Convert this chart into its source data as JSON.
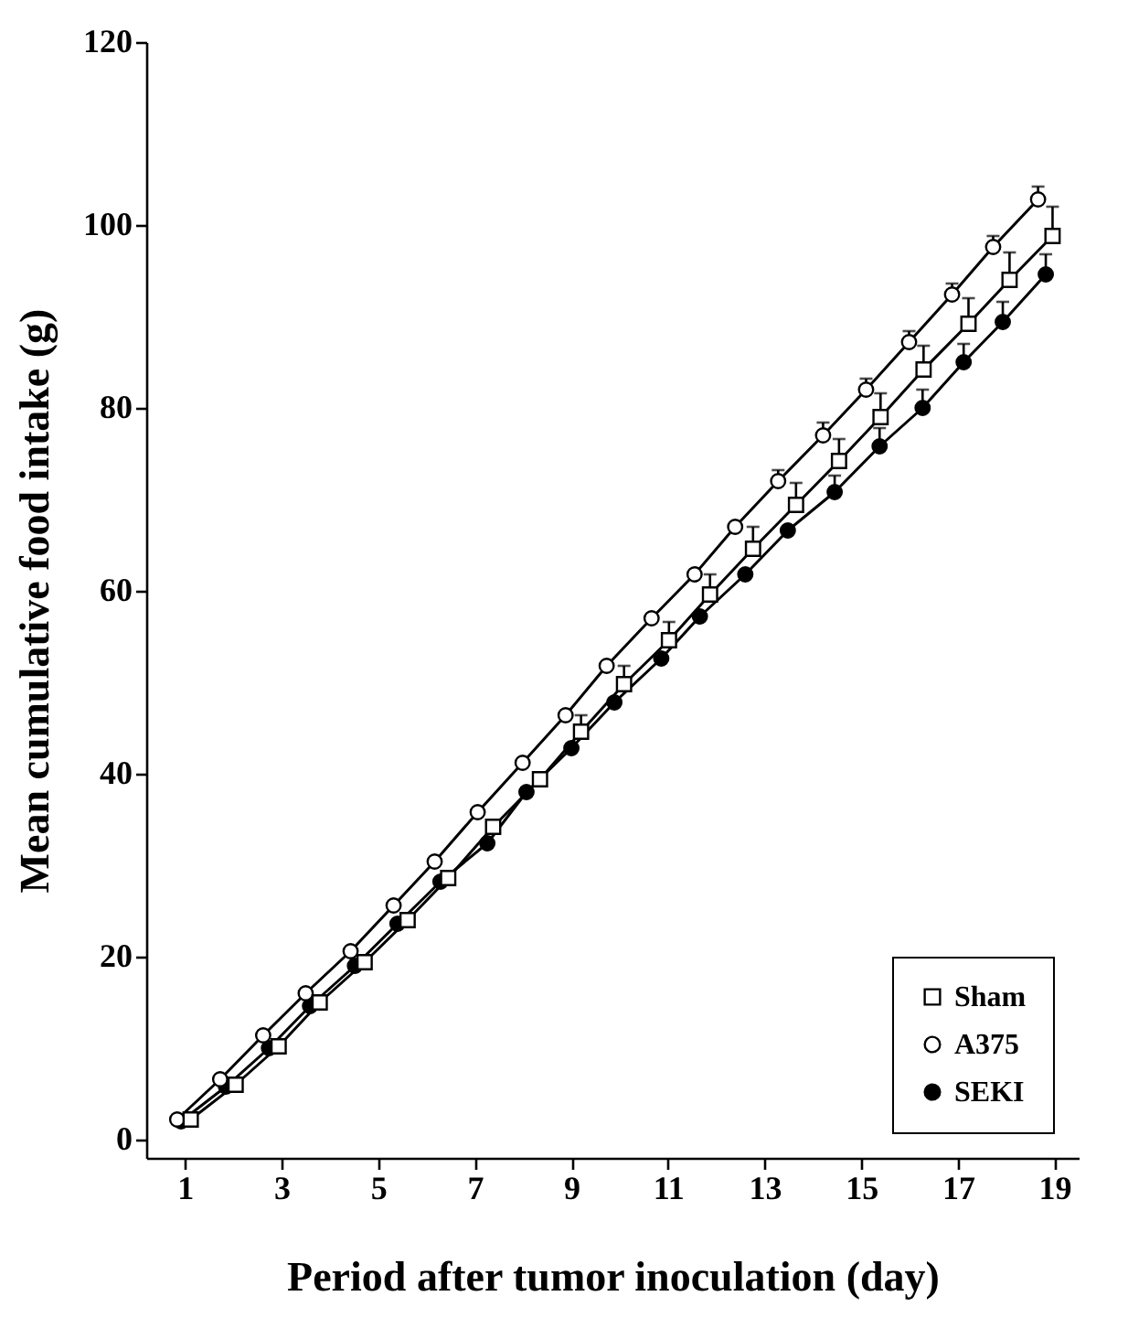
{
  "chart_data": {
    "type": "line",
    "xlabel": "Period after tumor inoculation (day)",
    "ylabel": "Mean cumulative food intake (g)",
    "xlim": [
      0.2,
      19.5
    ],
    "ylim": [
      -2,
      120
    ],
    "xticks": [
      1,
      3,
      5,
      7,
      9,
      11,
      13,
      15,
      17,
      19
    ],
    "yticks": [
      0,
      20,
      40,
      60,
      80,
      100,
      120
    ],
    "grid": false,
    "legend": "bottom right",
    "line_style": "solid",
    "series": [
      {
        "name": "Sham",
        "color": "#000000",
        "marker": "square",
        "colors": [
          "#ffffff",
          "#ffffff",
          "#ffffff",
          "#ffffff",
          "#ffffff",
          "#ffffff",
          "#ffffff",
          "#ffffff",
          "#ffffff",
          "#ffffff",
          "#ffffff",
          "#ffffff",
          "#ffffff",
          "#ffffff",
          "#ffffff",
          "#ffffff",
          "#ffffff",
          "#ffffff",
          "#ffffff",
          "#ffffff",
          "#ffffff"
        ],
        "x": [
          1.12,
          2.05,
          2.94,
          3.79,
          4.72,
          5.61,
          6.45,
          7.38,
          8.35,
          9.2,
          10.09,
          11.02,
          11.87,
          12.76,
          13.65,
          14.54,
          15.4,
          16.29,
          17.22,
          18.07,
          18.96
        ],
        "values": [
          2.2,
          6,
          10.2,
          15,
          19.4,
          24,
          28.6,
          34.2,
          39.4,
          44.6,
          49.8,
          54.6,
          59.6,
          64.6,
          69.4,
          74.2,
          79,
          84.2,
          89.2,
          94,
          98.8
        ],
        "errors": [
          null,
          null,
          null,
          null,
          null,
          null,
          null,
          null,
          null,
          [
            44.6,
            46.4
          ],
          [
            49.8,
            51.8
          ],
          [
            54.6,
            56.6
          ],
          [
            59.6,
            61.8
          ],
          [
            64.6,
            67
          ],
          [
            69.4,
            71.8
          ],
          [
            74.2,
            76.6
          ],
          [
            79,
            81.6
          ],
          [
            84.2,
            86.8
          ],
          [
            89.2,
            92
          ],
          [
            94,
            97
          ],
          [
            98.8,
            102
          ]
        ]
      },
      {
        "name": "A375",
        "color": "#000000",
        "marker": "circle",
        "colors": [
          "#ffffff",
          "#ffffff",
          "#ffffff",
          "#ffffff",
          "#ffffff",
          "#ffffff",
          "#ffffff",
          "#ffffff",
          "#ffffff",
          "#ffffff",
          "#ffffff",
          "#ffffff",
          "#ffffff",
          "#ffffff",
          "#ffffff",
          "#ffffff",
          "#ffffff",
          "#ffffff",
          "#ffffff",
          "#ffffff",
          "#ffffff"
        ],
        "x": [
          0.84,
          1.73,
          2.62,
          3.5,
          4.43,
          5.32,
          6.17,
          7.06,
          7.99,
          8.88,
          9.73,
          10.66,
          11.55,
          12.39,
          13.28,
          14.21,
          15.1,
          15.99,
          16.88,
          17.73,
          18.66
        ],
        "values": [
          2.2,
          6.6,
          11.4,
          16,
          20.6,
          25.6,
          30.4,
          35.8,
          41.2,
          46.4,
          51.8,
          57,
          61.8,
          67,
          72,
          77,
          82,
          87.2,
          92.4,
          97.6,
          102.8
        ],
        "errors": [
          null,
          null,
          null,
          null,
          null,
          null,
          null,
          null,
          null,
          null,
          null,
          null,
          null,
          null,
          [
            72,
            73.2
          ],
          [
            77,
            78.4
          ],
          [
            82,
            83.2
          ],
          [
            87.2,
            88.4
          ],
          [
            92.4,
            93.6
          ],
          [
            97.6,
            98.8
          ],
          [
            102.8,
            104.2
          ]
        ]
      },
      {
        "name": "SEKI",
        "color": "#000000",
        "marker": "circle",
        "colors": [
          "#000000",
          "#000000",
          "#000000",
          "#000000",
          "#000000",
          "#000000",
          "#000000",
          "#000000",
          "#000000",
          "#000000",
          "#000000",
          "#000000",
          "#000000",
          "#000000",
          "#000000",
          "#000000",
          "#000000",
          "#000000",
          "#000000",
          "#000000",
          "#000000"
        ],
        "x": [
          0.92,
          1.85,
          2.74,
          3.59,
          4.52,
          5.4,
          6.29,
          7.26,
          8.07,
          9,
          9.89,
          10.86,
          11.66,
          12.6,
          13.48,
          14.45,
          15.38,
          16.27,
          17.12,
          17.93,
          18.82
        ],
        "values": [
          2,
          5.8,
          10,
          14.6,
          19,
          23.6,
          28.2,
          32.4,
          38,
          42.8,
          47.8,
          52.6,
          57.2,
          61.8,
          66.6,
          70.8,
          75.8,
          80,
          85,
          89.4,
          94.6
        ],
        "errors": [
          null,
          null,
          null,
          null,
          null,
          null,
          null,
          null,
          null,
          null,
          null,
          null,
          null,
          null,
          null,
          [
            70.8,
            72.6
          ],
          [
            75.8,
            77.8
          ],
          [
            80,
            82
          ],
          [
            85,
            87
          ],
          [
            89.4,
            91.6
          ],
          [
            94.6,
            96.8
          ]
        ]
      }
    ]
  }
}
